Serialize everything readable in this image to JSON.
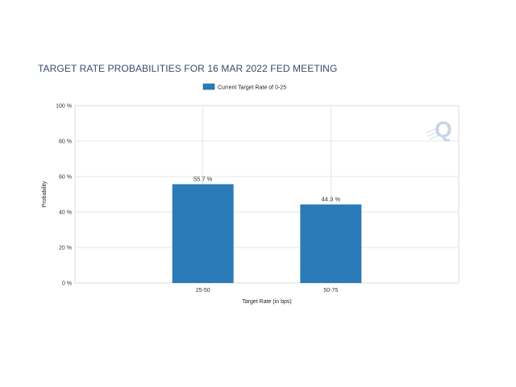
{
  "chart_data": {
    "type": "bar",
    "title": "TARGET RATE PROBABILITIES FOR 16 MAR 2022 FED MEETING",
    "categories": [
      "25-50",
      "50-75"
    ],
    "series": [
      {
        "name": "Current Target Rate of 0-25",
        "values": [
          55.7,
          44.3
        ],
        "color": "#2a7bb8"
      }
    ],
    "data_labels": [
      "55.7 %",
      "44.3 %"
    ],
    "xlabel": "Target Rate (in bps)",
    "ylabel": "Probability",
    "ylim": [
      0,
      100
    ],
    "yticks": [
      0,
      20,
      40,
      60,
      80,
      100
    ],
    "ytick_labels": [
      "0 %",
      "20 %",
      "40 %",
      "60 %",
      "80 %",
      "100 %"
    ],
    "grid": true,
    "legend_position": "top-center",
    "watermark": "Q"
  }
}
